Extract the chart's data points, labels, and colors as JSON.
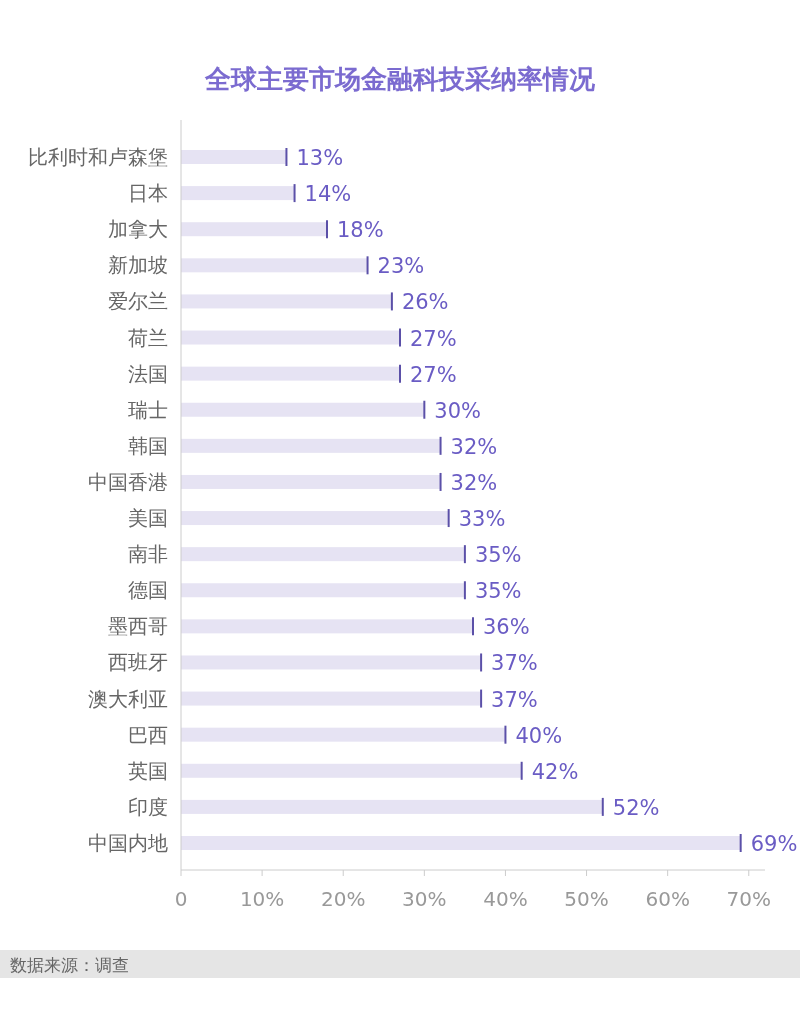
{
  "chart_data": {
    "type": "bar",
    "orientation": "horizontal",
    "title": "全球主要市场金融科技采纳率情况",
    "categories": [
      "比利时和卢森堡",
      "日本",
      "加拿大",
      "新加坡",
      "爱尔兰",
      "荷兰",
      "法国",
      "瑞士",
      "韩国",
      "中国香港",
      "美国",
      "南非",
      "德国",
      "墨西哥",
      "西班牙",
      "澳大利亚",
      "巴西",
      "英国",
      "印度",
      "中国内地"
    ],
    "values": [
      13,
      14,
      18,
      23,
      26,
      27,
      27,
      30,
      32,
      32,
      33,
      35,
      35,
      36,
      37,
      37,
      40,
      42,
      52,
      69
    ],
    "value_labels": [
      "13%",
      "14%",
      "18%",
      "23%",
      "26%",
      "27%",
      "27%",
      "30%",
      "32%",
      "32%",
      "33%",
      "35%",
      "35%",
      "36%",
      "37%",
      "37%",
      "40%",
      "42%",
      "52%",
      "69%"
    ],
    "color": "#e6e3f3",
    "xlim": [
      0,
      72
    ],
    "xticks": [
      0,
      {
        "value": 10,
        "label": "10%"
      },
      {
        "value": 20,
        "label": "20%"
      },
      {
        "value": 30,
        "label": "30%"
      },
      {
        "value": 40,
        "label": "40%"
      },
      {
        "value": 50,
        "label": "50%"
      },
      {
        "value": 60,
        "label": "60%"
      },
      {
        "value": 70,
        "label": "70%"
      }
    ],
    "annotations": [
      "数据来源：调查"
    ]
  }
}
